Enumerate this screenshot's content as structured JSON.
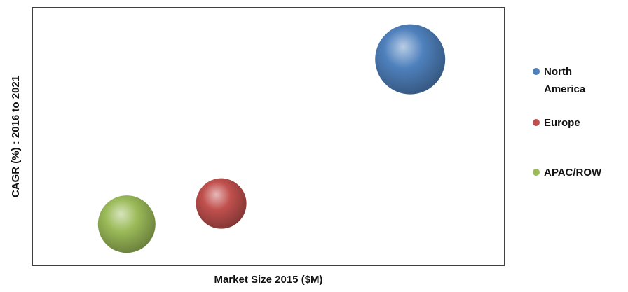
{
  "chart_data": {
    "type": "bubble",
    "title": "",
    "xlabel": "Market Size 2015 ($M)",
    "ylabel": "CAGR (%) : 2016 to 2021",
    "axis_ticks_shown": false,
    "grid": false,
    "legend_position": "right",
    "xlim": [
      0,
      100
    ],
    "ylim": [
      0,
      100
    ],
    "series": [
      {
        "name": "North America",
        "legend_lines": [
          "North",
          "America"
        ],
        "x": 80,
        "y": 80,
        "size": 1.0,
        "color": "#4f81bd"
      },
      {
        "name": "Europe",
        "legend_lines": [
          "Europe"
        ],
        "x": 40,
        "y": 24,
        "size": 0.72,
        "color": "#c0504d"
      },
      {
        "name": "APAC/ROW",
        "legend_lines": [
          "APAC/ROW"
        ],
        "x": 20,
        "y": 16,
        "size": 0.82,
        "color": "#9bbb59"
      }
    ]
  }
}
